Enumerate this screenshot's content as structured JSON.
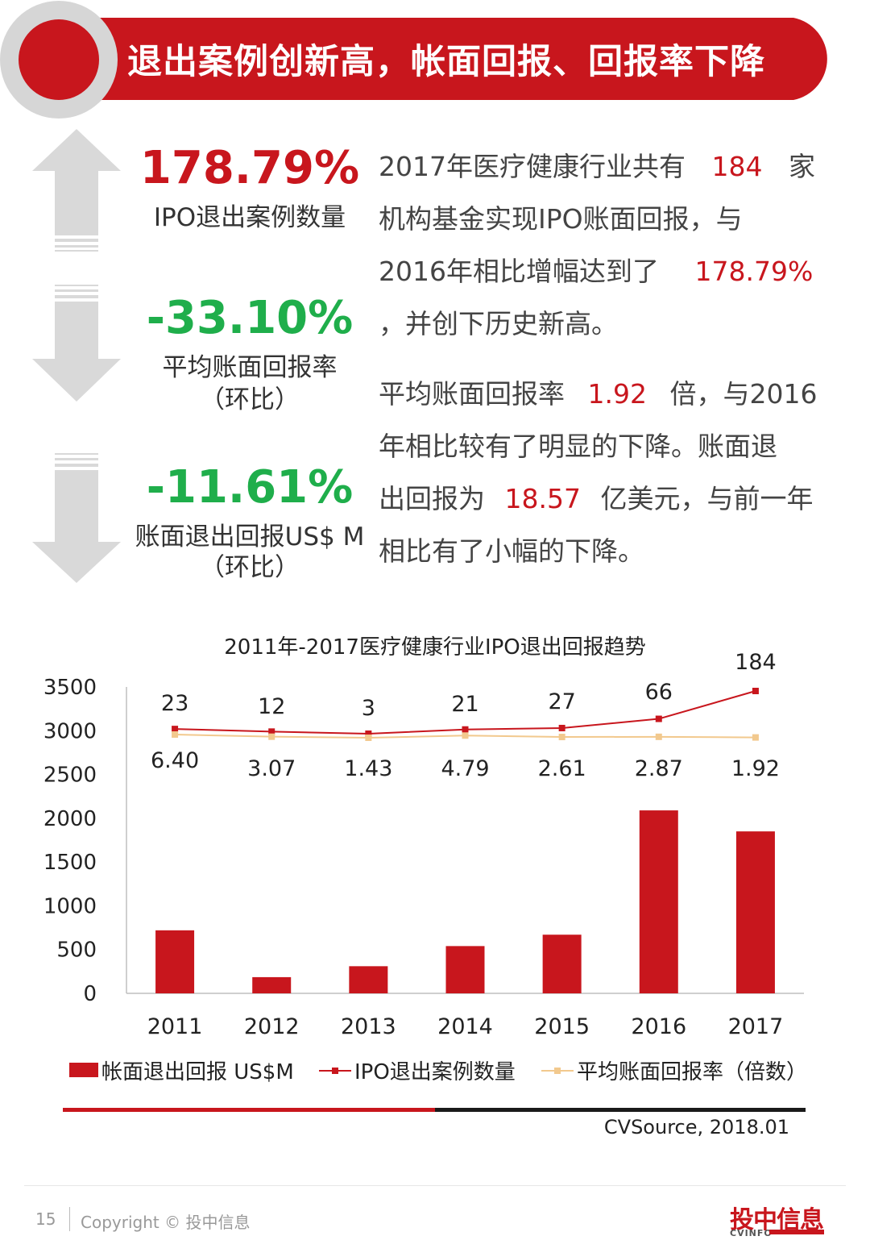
{
  "header": {
    "title": "退出案例创新高，帐面回报、回报率下降"
  },
  "stats": [
    {
      "value": "178.79%",
      "label": "IPO退出案例数量",
      "sublabel": "",
      "color": "#c8161d",
      "direction": "up"
    },
    {
      "value": "-33.10%",
      "label": "平均账面回报率",
      "sublabel": "（环比）",
      "color": "#1fae4b",
      "direction": "down"
    },
    {
      "value": "-11.61%",
      "label": "账面退出回报US$ M",
      "sublabel": "（环比）",
      "color": "#1fae4b",
      "direction": "down"
    }
  ],
  "paragraph1": {
    "l1a": "2017年医疗健康行业共有",
    "l1b": "184",
    "l1c": "家",
    "l2": "机构基金实现IPO账面回报，与",
    "l3a": "2016年相比增幅达到了",
    "l3b": "178.79%",
    "l4": "，并创下历史新高。"
  },
  "paragraph2": {
    "l1a": "平均账面回报率",
    "l1b": "1.92",
    "l1c": "倍，与2016",
    "l2": "年相比较有了明显的下降。账面退",
    "l3a": "出回报为",
    "l3b": "18.57",
    "l3c": "亿美元，与前一年",
    "l4": "相比有了小幅的下降。"
  },
  "chart_data": {
    "type": "bar",
    "title": "2011年-2017医疗健康行业IPO退出回报趋势",
    "categories": [
      "2011",
      "2012",
      "2013",
      "2014",
      "2015",
      "2016",
      "2017"
    ],
    "series": [
      {
        "name": "帐面退出回报 US$M",
        "type": "bar",
        "color": "#c8161d",
        "values": [
          720,
          185,
          310,
          540,
          670,
          2090,
          1850
        ]
      },
      {
        "name": "IPO退出案例数量",
        "type": "line",
        "color": "#c8161d",
        "values": [
          23,
          12,
          3,
          21,
          27,
          66,
          184
        ],
        "labels": [
          "23",
          "12",
          "3",
          "21",
          "27",
          "66",
          "184"
        ]
      },
      {
        "name": "平均账面回报率（倍数）",
        "type": "line",
        "color": "#f2c98e",
        "values": [
          6.4,
          3.07,
          1.43,
          4.79,
          2.61,
          2.87,
          1.92
        ],
        "labels": [
          "6.40",
          "3.07",
          "1.43",
          "4.79",
          "2.61",
          "2.87",
          "1.92"
        ]
      }
    ],
    "yticks": [
      "0",
      "500",
      "1000",
      "1500",
      "2000",
      "2500",
      "3000",
      "3500"
    ],
    "ylim": [
      0,
      3500
    ],
    "legend_position": "bottom",
    "grid": false
  },
  "source": "CVSource, 2018.01",
  "footer": {
    "page": "15",
    "copyright": "Copyright © 投中信息",
    "logo": "投中信息",
    "logo_sub": "CVINFO"
  },
  "colors": {
    "brand_red": "#c8161d",
    "green": "#1fae4b",
    "gray_arrow": "#d9d9d9"
  }
}
